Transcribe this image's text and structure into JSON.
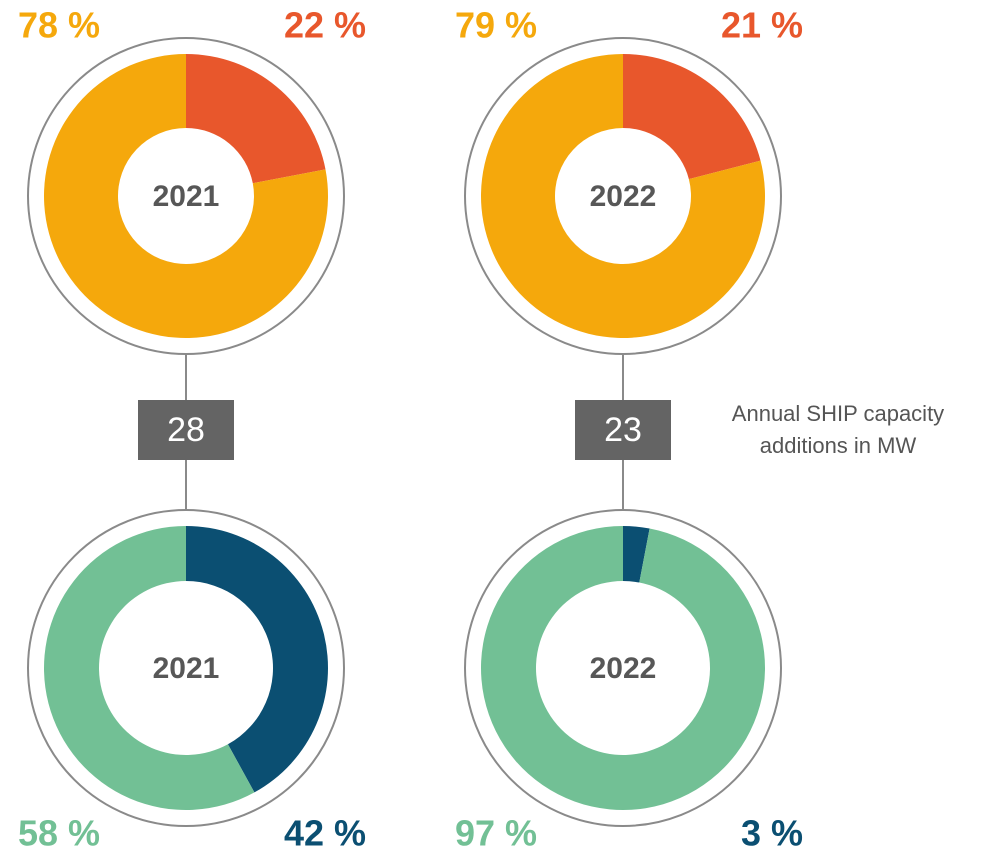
{
  "chart_data": [
    {
      "type": "pie",
      "title": "2021",
      "values": [
        78,
        22
      ],
      "value_labels": [
        "78 %",
        "22 %"
      ],
      "colors": [
        "#f5a80c",
        "#e8572c"
      ]
    },
    {
      "type": "pie",
      "title": "2022",
      "values": [
        79,
        21
      ],
      "value_labels": [
        "79 %",
        "21 %"
      ],
      "colors": [
        "#f5a80c",
        "#e8572c"
      ]
    },
    {
      "type": "pie",
      "title": "2021",
      "values": [
        58,
        42
      ],
      "value_labels": [
        "58 %",
        "42 %"
      ],
      "colors": [
        "#72c095",
        "#0b4f72"
      ]
    },
    {
      "type": "pie",
      "title": "2022",
      "values": [
        97,
        3
      ],
      "value_labels": [
        "97 %",
        "3 %"
      ],
      "colors": [
        "#72c095",
        "#0b4f72"
      ]
    }
  ],
  "capacity_additions": {
    "label_lines": [
      "Annual SHIP capacity",
      "additions in MW"
    ],
    "values": [
      28,
      23
    ]
  }
}
